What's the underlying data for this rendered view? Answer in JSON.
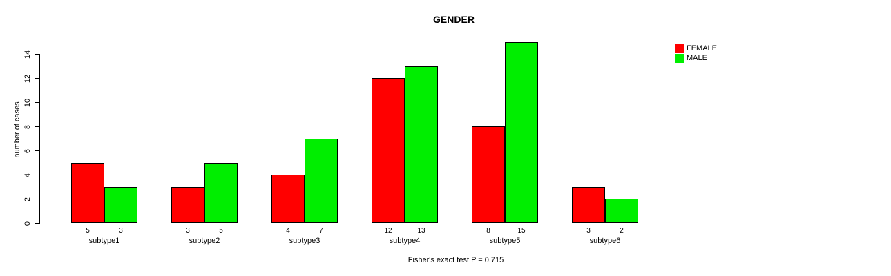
{
  "chart_data": {
    "type": "bar",
    "title": "GENDER",
    "ylabel": "number of cases",
    "xlabel": "",
    "caption": "Fisher's exact test P = 0.715",
    "categories": [
      "subtype1",
      "subtype2",
      "subtype3",
      "subtype4",
      "subtype5",
      "subtype6"
    ],
    "series": [
      {
        "name": "FEMALE",
        "color": "#ff0000",
        "values": [
          5,
          3,
          4,
          12,
          8,
          3
        ]
      },
      {
        "name": "MALE",
        "color": "#00ee00",
        "values": [
          3,
          5,
          7,
          13,
          15,
          2
        ]
      }
    ],
    "bar_value_labels": [
      [
        "5",
        "3"
      ],
      [
        "3",
        "5"
      ],
      [
        "4",
        "7"
      ],
      [
        "12",
        "13"
      ],
      [
        "8",
        "15"
      ],
      [
        "3",
        "2"
      ]
    ],
    "yticks": [
      0,
      2,
      4,
      6,
      8,
      10,
      12,
      14
    ],
    "ylim": [
      0,
      15
    ],
    "grid": false,
    "legend_position": "top-right",
    "bar_border_color": "#000000"
  }
}
